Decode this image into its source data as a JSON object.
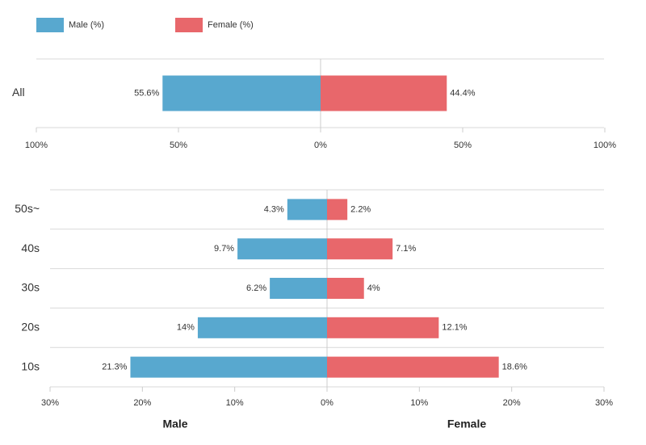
{
  "chart_data": [
    {
      "type": "bar",
      "orientation": "horizontal",
      "diverging": true,
      "categories": [
        "All"
      ],
      "series": [
        {
          "name": "Male (%)",
          "color": "#58a8cf",
          "values": [
            55.6
          ],
          "value_labels": [
            "55.6%"
          ]
        },
        {
          "name": "Female (%)",
          "color": "#e8676b",
          "values": [
            44.4
          ],
          "value_labels": [
            "44.4%"
          ]
        }
      ],
      "xlim": [
        0,
        100
      ],
      "xticks": [
        {
          "value": 0,
          "label": "0%"
        },
        {
          "value": 50,
          "label": "50%"
        },
        {
          "value": 100,
          "label": "100%"
        }
      ],
      "legend": "top-left"
    },
    {
      "type": "bar",
      "orientation": "horizontal",
      "diverging": true,
      "categories": [
        "50s~",
        "40s",
        "30s",
        "20s",
        "10s"
      ],
      "series": [
        {
          "color": "#58a8cf",
          "values": [
            4.3,
            9.7,
            6.2,
            14,
            21.3
          ],
          "value_labels": [
            "4.3%",
            "9.7%",
            "6.2%",
            "14%",
            "21.3%"
          ]
        },
        {
          "color": "#e8676b",
          "values": [
            2.2,
            7.1,
            4,
            12.1,
            18.6
          ],
          "value_labels": [
            "2.2%",
            "7.1%",
            "4%",
            "12.1%",
            "18.6%"
          ]
        }
      ],
      "xlim": [
        0,
        30
      ],
      "xticks": [
        {
          "value": 0,
          "label": "0%"
        },
        {
          "value": 10,
          "label": "10%"
        },
        {
          "value": 20,
          "label": "20%"
        },
        {
          "value": 30,
          "label": "30%"
        }
      ],
      "xlabel_left": "Male",
      "xlabel_right": "Female"
    }
  ]
}
